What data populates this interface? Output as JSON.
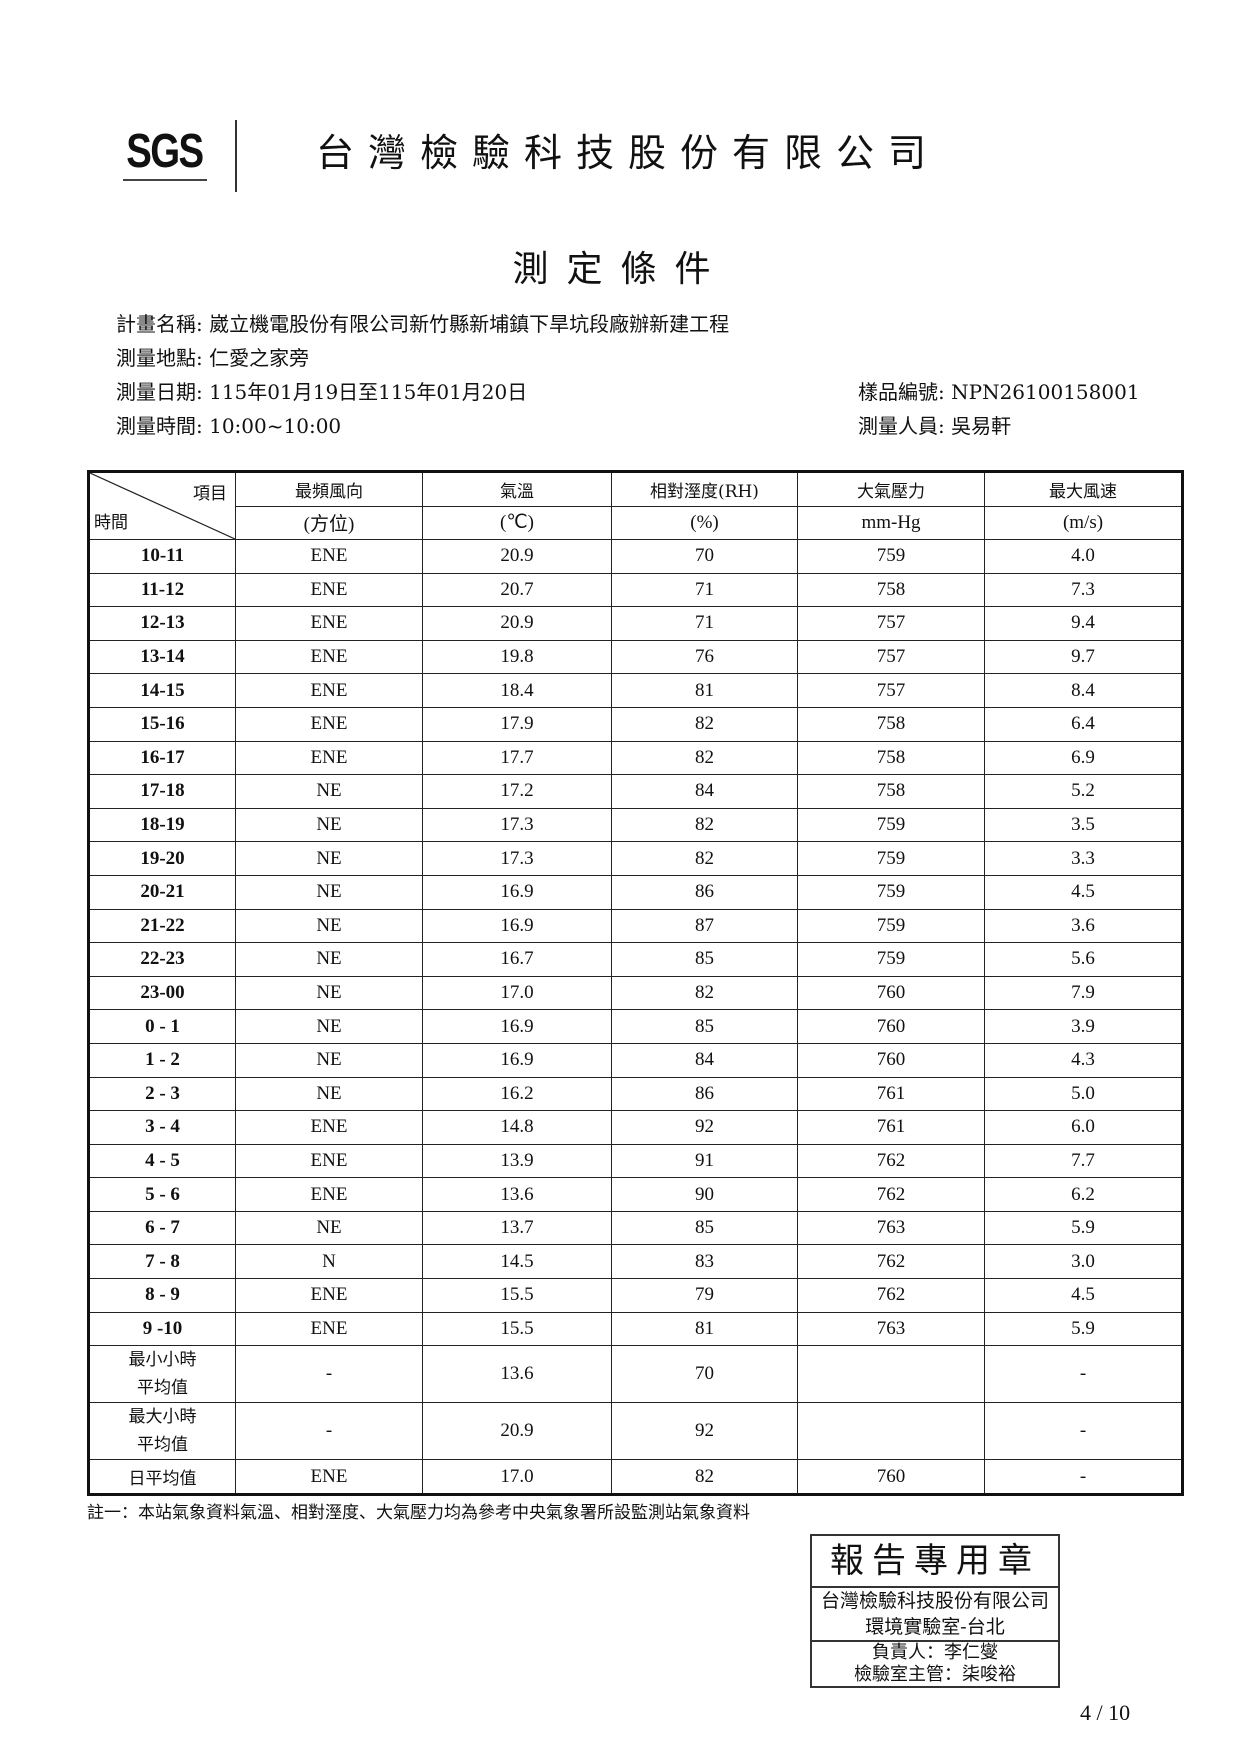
{
  "header": {
    "logo": "SGS",
    "company": "台灣檢驗科技股份有限公司"
  },
  "title": "測定條件",
  "info": {
    "project_label": "計畫名稱:",
    "project": "崴立機電股份有限公司新竹縣新埔鎮下旱坑段廠辦新建工程",
    "location_label": "測量地點:",
    "location": "仁愛之家旁",
    "date_label": "測量日期:",
    "date": "115年01月19日至115年01月20日",
    "time_label": "測量時間:",
    "time": "10:00~10:00",
    "sample_label": "樣品編號:",
    "sample": "NPN26100158001",
    "staff_label": "測量人員:",
    "staff": "吳易軒"
  },
  "table": {
    "corner_item": "項目",
    "corner_time": "時間",
    "columns": [
      {
        "name": "最頻風向",
        "unit": "(方位)"
      },
      {
        "name": "氣溫",
        "unit": "(℃)"
      },
      {
        "name": "相對溼度(RH)",
        "unit": "(%)"
      },
      {
        "name": "大氣壓力",
        "unit": "mm-Hg"
      },
      {
        "name": "最大風速",
        "unit": "(m/s)"
      }
    ],
    "rows": [
      [
        "10-11",
        "ENE",
        "20.9",
        "70",
        "759",
        "4.0"
      ],
      [
        "11-12",
        "ENE",
        "20.7",
        "71",
        "758",
        "7.3"
      ],
      [
        "12-13",
        "ENE",
        "20.9",
        "71",
        "757",
        "9.4"
      ],
      [
        "13-14",
        "ENE",
        "19.8",
        "76",
        "757",
        "9.7"
      ],
      [
        "14-15",
        "ENE",
        "18.4",
        "81",
        "757",
        "8.4"
      ],
      [
        "15-16",
        "ENE",
        "17.9",
        "82",
        "758",
        "6.4"
      ],
      [
        "16-17",
        "ENE",
        "17.7",
        "82",
        "758",
        "6.9"
      ],
      [
        "17-18",
        "NE",
        "17.2",
        "84",
        "758",
        "5.2"
      ],
      [
        "18-19",
        "NE",
        "17.3",
        "82",
        "759",
        "3.5"
      ],
      [
        "19-20",
        "NE",
        "17.3",
        "82",
        "759",
        "3.3"
      ],
      [
        "20-21",
        "NE",
        "16.9",
        "86",
        "759",
        "4.5"
      ],
      [
        "21-22",
        "NE",
        "16.9",
        "87",
        "759",
        "3.6"
      ],
      [
        "22-23",
        "NE",
        "16.7",
        "85",
        "759",
        "5.6"
      ],
      [
        "23-00",
        "NE",
        "17.0",
        "82",
        "760",
        "7.9"
      ],
      [
        "0 - 1",
        "NE",
        "16.9",
        "85",
        "760",
        "3.9"
      ],
      [
        "1 - 2",
        "NE",
        "16.9",
        "84",
        "760",
        "4.3"
      ],
      [
        "2 - 3",
        "NE",
        "16.2",
        "86",
        "761",
        "5.0"
      ],
      [
        "3 - 4",
        "ENE",
        "14.8",
        "92",
        "761",
        "6.0"
      ],
      [
        "4 - 5",
        "ENE",
        "13.9",
        "91",
        "762",
        "7.7"
      ],
      [
        "5 - 6",
        "ENE",
        "13.6",
        "90",
        "762",
        "6.2"
      ],
      [
        "6 - 7",
        "NE",
        "13.7",
        "85",
        "763",
        "5.9"
      ],
      [
        "7 - 8",
        "N",
        "14.5",
        "83",
        "762",
        "3.0"
      ],
      [
        "8 - 9",
        "ENE",
        "15.5",
        "79",
        "762",
        "4.5"
      ],
      [
        "9 -10",
        "ENE",
        "15.5",
        "81",
        "763",
        "5.9"
      ]
    ],
    "summary": [
      {
        "label1": "最小小時",
        "label2": "平均值",
        "values": [
          "-",
          "13.6",
          "70",
          "",
          "-"
        ]
      },
      {
        "label1": "最大小時",
        "label2": "平均值",
        "values": [
          "-",
          "20.9",
          "92",
          "",
          "-"
        ]
      }
    ],
    "daily": {
      "label": "日平均值",
      "values": [
        "ENE",
        "17.0",
        "82",
        "760",
        "-"
      ]
    }
  },
  "stamp": {
    "line1": "報告專用章",
    "line2": "台灣檢驗科技股份有限公司",
    "line3": "環境實驗室-台北",
    "line4": "負責人：李仁燮",
    "line5": "檢驗室主管：柒唆裕"
  },
  "footnote": "註一：本站氣象資料氣溫、相對溼度、大氣壓力均為參考中央氣象署所設監測站氣象資料",
  "page": "4 / 10"
}
